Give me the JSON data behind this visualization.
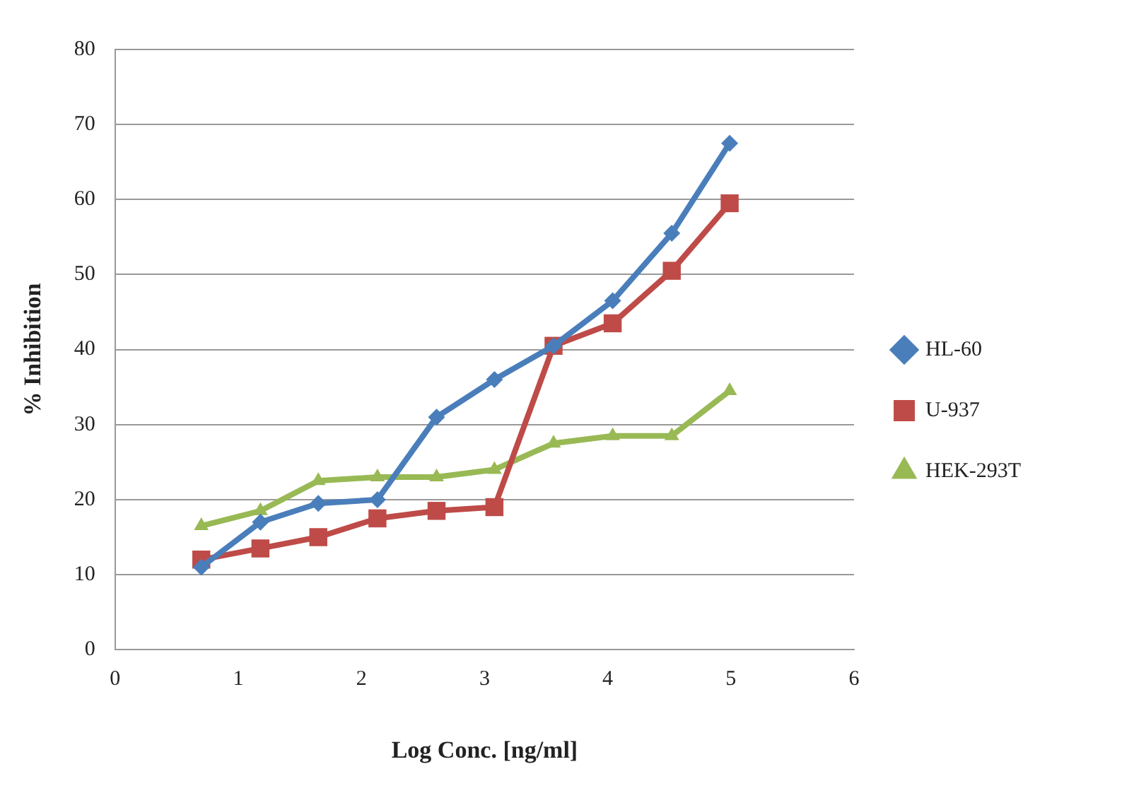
{
  "chart_data": {
    "type": "line",
    "xlabel": "Log Conc. [ng/ml]",
    "ylabel": "% Inhibition",
    "x": [
      0.7,
      1.18,
      1.65,
      2.13,
      2.61,
      3.08,
      3.56,
      4.04,
      4.52,
      4.99
    ],
    "series": [
      {
        "name": "HL-60",
        "color": "#4a7ebb",
        "marker": "diamond",
        "values": [
          11,
          17,
          19.5,
          20,
          31,
          36,
          40.5,
          46.5,
          55.5,
          67.5
        ]
      },
      {
        "name": "U-937",
        "color": "#be4b48",
        "marker": "square",
        "values": [
          12,
          13.5,
          15,
          17.5,
          18.5,
          19,
          40.5,
          43.5,
          50.5,
          59.5
        ]
      },
      {
        "name": "HEK-293T",
        "color": "#98b954",
        "marker": "triangle",
        "values": [
          16.5,
          18.5,
          22.5,
          23,
          23,
          24,
          27.5,
          28.5,
          28.5,
          34.5
        ]
      }
    ],
    "xlim": [
      0,
      6
    ],
    "xticks": [
      0,
      1,
      2,
      3,
      4,
      5,
      6
    ],
    "ylim": [
      0,
      80
    ],
    "yticks": [
      0,
      10,
      20,
      30,
      40,
      50,
      60,
      70,
      80
    ],
    "grid": "y",
    "legend": "right"
  }
}
